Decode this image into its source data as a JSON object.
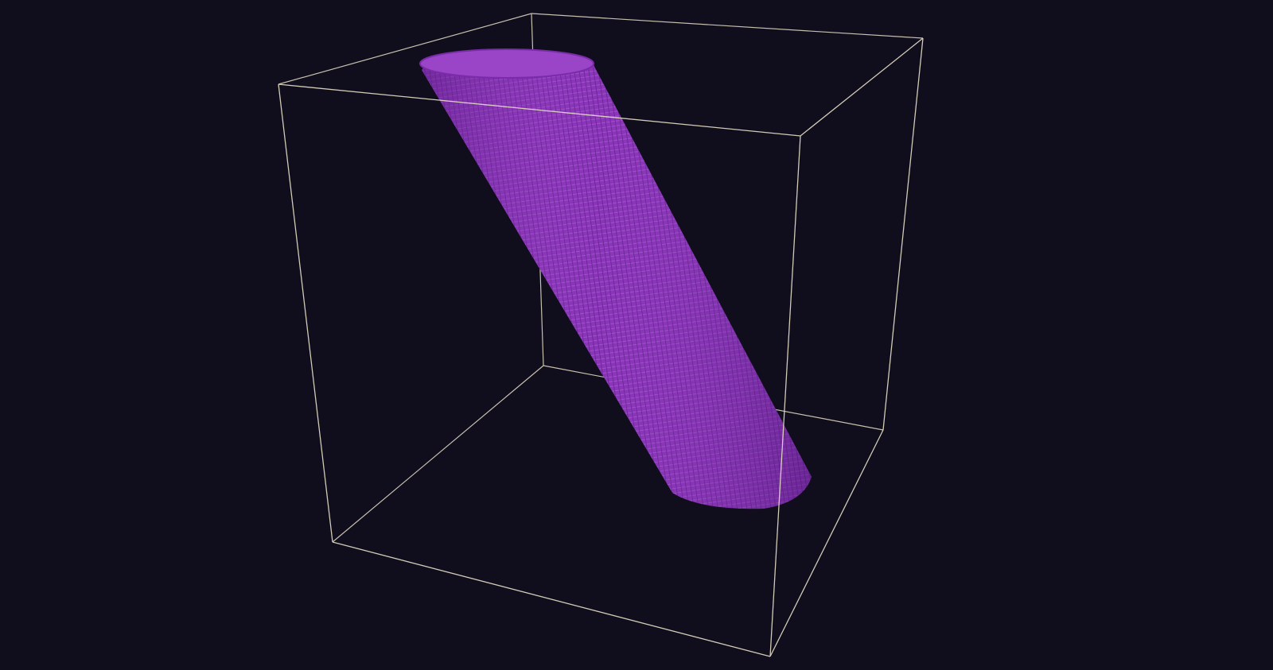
{
  "scene": {
    "background_color": "#100d1c",
    "wireframe_color": "#e8e0c8",
    "voxel_color": "#8a35b8",
    "voxel_highlight_color": "#a24fd0",
    "voxel_shadow_color": "#5e1f86",
    "object": "voxel-cylinder",
    "bounding_box": "wireframe-cube"
  }
}
